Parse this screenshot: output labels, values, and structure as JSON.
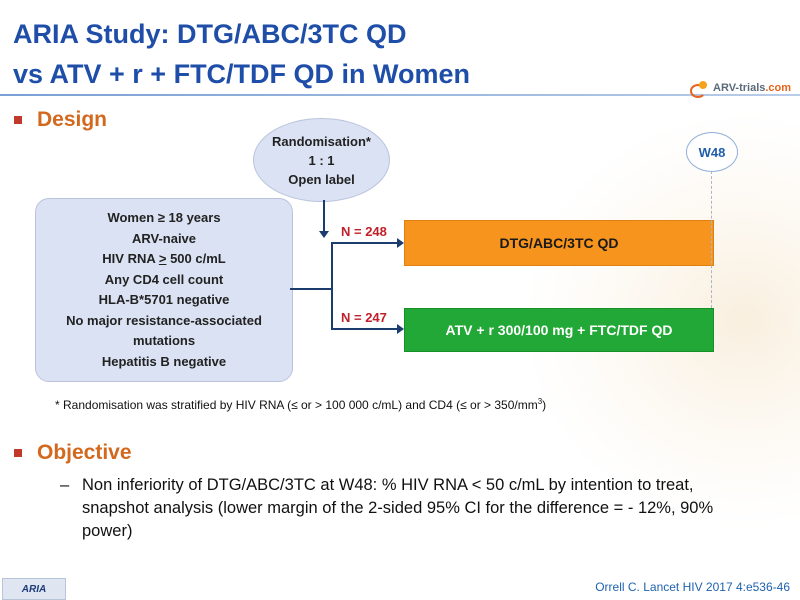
{
  "title": {
    "line1": "ARIA Study: DTG/ABC/3TC QD",
    "line2": "vs ATV + r + FTC/TDF QD in Women"
  },
  "logo": {
    "text_main": "ARV-trials",
    "text_suffix": ".com"
  },
  "design": {
    "heading": "Design",
    "randomisation": [
      "Randomisation*",
      "1 : 1",
      "Open label"
    ],
    "criteria": {
      "line1": "Women ≥ 18 years",
      "line2": "ARV-naive",
      "line3_prefix": "HIV RNA ",
      "line3_symbol": ">",
      "line3_suffix": " 500 c/mL",
      "line4": "Any CD4 cell count",
      "line5": "HLA-B*5701 negative",
      "line6": "No major  resistance-associated",
      "line7": "mutations",
      "line8": "Hepatitis  B negative"
    },
    "arms": [
      {
        "n": "N = 248",
        "label": "DTG/ABC/3TC QD",
        "color": "#f7941d"
      },
      {
        "n": "N = 247",
        "label": "ATV + r 300/100 mg + FTC/TDF QD",
        "color": "#22a836"
      }
    ],
    "timepoint": "W48",
    "footnote_main": "* Randomisation was stratified by HIV RNA (≤ or > 100 000 c/mL) and CD4 (≤ or > 350/mm",
    "footnote_sup": "3",
    "footnote_end": ")"
  },
  "objective": {
    "heading": "Objective",
    "dash": "–",
    "text": "Non inferiority of DTG/ABC/3TC  at W48: % HIV RNA < 50 c/mL by intention to treat, snapshot analysis (lower margin of the 2-sided 95% CI for the difference = - 12%, 90% power)"
  },
  "footer": {
    "badge": "ARIA",
    "citation": "Orrell C. Lancet HIV 2017 4:e536-46"
  },
  "colors": {
    "title": "#1e4ea8",
    "section_heading": "#d2691e",
    "bullet": "#c0392b",
    "n_label": "#c0202a",
    "box_fill": "#dbe2f3",
    "connector": "#1a3d6e",
    "citation": "#2062b0"
  }
}
